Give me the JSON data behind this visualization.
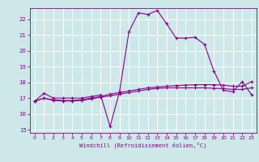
{
  "xlabel": "Windchill (Refroidissement éolien,°C)",
  "bg_color": "#cce8e8",
  "grid_color": "#ffffff",
  "line_color": "#8b008b",
  "xlim": [
    -0.5,
    23.5
  ],
  "ylim": [
    14.8,
    22.7
  ],
  "yticks": [
    15,
    16,
    17,
    18,
    19,
    20,
    21,
    22
  ],
  "xticks": [
    0,
    1,
    2,
    3,
    4,
    5,
    6,
    7,
    8,
    9,
    10,
    11,
    12,
    13,
    14,
    15,
    16,
    17,
    18,
    19,
    20,
    21,
    22,
    23
  ],
  "series1_x": [
    0,
    1,
    2,
    3,
    4,
    5,
    6,
    7,
    8,
    9,
    10,
    11,
    12,
    13,
    14,
    15,
    16,
    17,
    18,
    19,
    20,
    21,
    22,
    23
  ],
  "series1_y": [
    16.8,
    17.3,
    17.0,
    17.0,
    17.0,
    17.0,
    17.1,
    17.2,
    15.2,
    17.4,
    21.2,
    22.4,
    22.3,
    22.55,
    21.7,
    20.8,
    20.8,
    20.85,
    20.4,
    18.7,
    17.5,
    17.4,
    18.05,
    17.2
  ],
  "series2_x": [
    0,
    1,
    2,
    3,
    4,
    5,
    6,
    7,
    8,
    9,
    10,
    11,
    12,
    13,
    14,
    15,
    16,
    17,
    18,
    19,
    20,
    21,
    22,
    23
  ],
  "series2_y": [
    16.8,
    17.0,
    16.9,
    16.85,
    16.85,
    16.9,
    17.0,
    17.1,
    17.25,
    17.35,
    17.45,
    17.55,
    17.65,
    17.7,
    17.75,
    17.8,
    17.82,
    17.85,
    17.85,
    17.85,
    17.82,
    17.75,
    17.75,
    18.05
  ],
  "series3_x": [
    0,
    1,
    2,
    3,
    4,
    5,
    6,
    7,
    8,
    9,
    10,
    11,
    12,
    13,
    14,
    15,
    16,
    17,
    18,
    19,
    20,
    21,
    22,
    23
  ],
  "series3_y": [
    16.8,
    17.0,
    16.85,
    16.82,
    16.82,
    16.85,
    16.95,
    17.05,
    17.15,
    17.25,
    17.35,
    17.45,
    17.55,
    17.62,
    17.65,
    17.65,
    17.65,
    17.65,
    17.65,
    17.62,
    17.6,
    17.55,
    17.55,
    17.65
  ]
}
